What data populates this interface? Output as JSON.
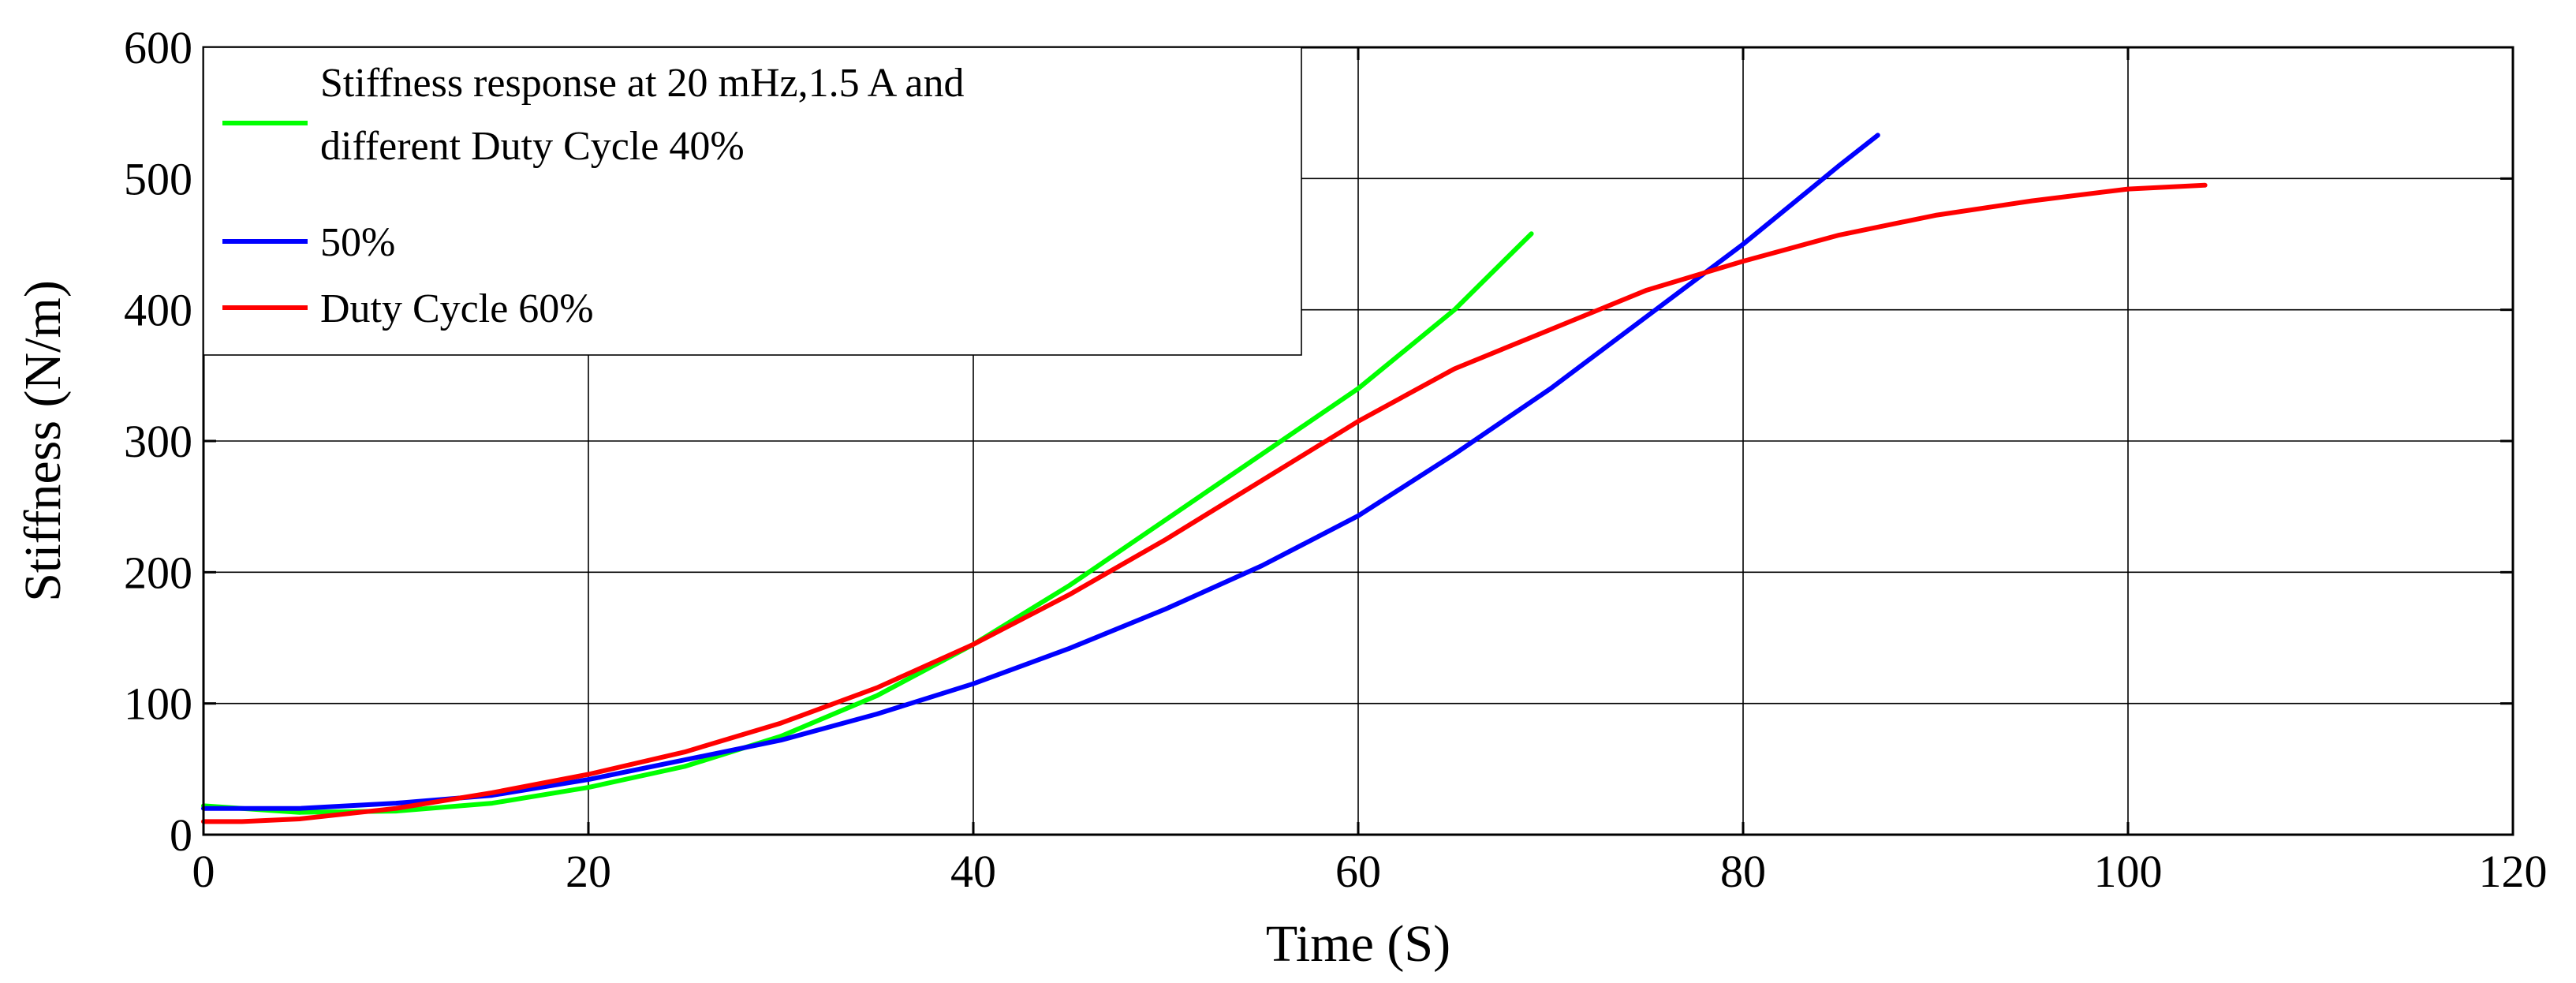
{
  "chart_data": {
    "type": "line",
    "title": "",
    "xlabel": "Time (S)",
    "ylabel": "Stiffness (N/m)",
    "xlim": [
      0,
      120
    ],
    "ylim": [
      0,
      600
    ],
    "xticks": [
      "0",
      "20",
      "40",
      "60",
      "80",
      "100",
      "120"
    ],
    "yticks": [
      "0",
      "100",
      "200",
      "300",
      "400",
      "500",
      "600"
    ],
    "grid": true,
    "legend_location": "top-left",
    "legend": {
      "entry_1_line_1": "Stiffness response at 20 mHz,1.5 A and",
      "entry_1_line_2": "different Duty Cycle 40%",
      "entry_2": "50%",
      "entry_3": "Duty Cycle 60%"
    },
    "series": [
      {
        "name": "Stiffness response at 20 mHz,1.5 A and different Duty Cycle 40%",
        "color": "#00ff00",
        "x": [
          0,
          2,
          5,
          10,
          15,
          20,
          25,
          30,
          35,
          40,
          45,
          50,
          55,
          60,
          65,
          69
        ],
        "y": [
          22,
          20,
          17,
          18,
          24,
          36,
          52,
          75,
          106,
          145,
          190,
          240,
          290,
          340,
          400,
          458
        ]
      },
      {
        "name": "50%",
        "color": "#0000ff",
        "x": [
          0,
          5,
          10,
          15,
          20,
          25,
          30,
          35,
          40,
          45,
          50,
          55,
          60,
          65,
          70,
          75,
          80,
          85,
          87
        ],
        "y": [
          20,
          20,
          24,
          30,
          42,
          57,
          72,
          92,
          115,
          142,
          172,
          205,
          243,
          290,
          340,
          395,
          450,
          510,
          533
        ]
      },
      {
        "name": "Duty Cycle 60%",
        "color": "#ff0000",
        "x": [
          0,
          2,
          5,
          10,
          15,
          20,
          25,
          30,
          35,
          40,
          45,
          50,
          55,
          60,
          65,
          70,
          75,
          80,
          85,
          90,
          95,
          100,
          104
        ],
        "y": [
          10,
          10,
          12,
          20,
          32,
          46,
          63,
          85,
          112,
          145,
          183,
          225,
          270,
          315,
          355,
          385,
          415,
          437,
          457,
          472,
          483,
          492,
          495
        ]
      }
    ]
  }
}
